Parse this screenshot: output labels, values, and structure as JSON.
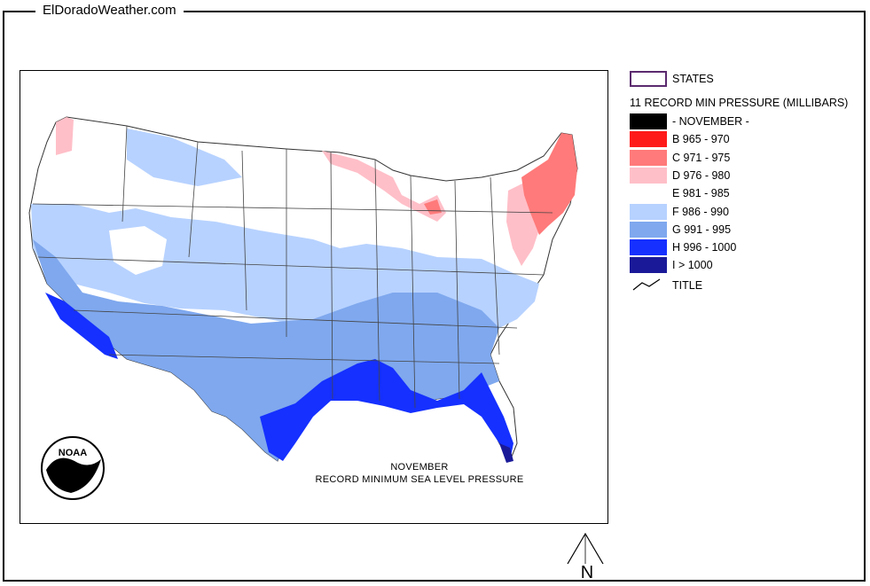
{
  "site": {
    "title": "ElDoradoWeather.com"
  },
  "map": {
    "caption_line1": "NOVEMBER",
    "caption_line2": "RECORD MINIMUM SEA LEVEL PRESSURE",
    "logo_text": "NOAA",
    "north_label": "N"
  },
  "legend": {
    "states_label": "STATES",
    "states_outline_color": "#5b2a6e",
    "layer_title": "11 RECORD MIN PRESSURE (MILLIBARS)",
    "title_label": "TITLE",
    "classes": [
      {
        "label": "- NOVEMBER -",
        "color": "#000000"
      },
      {
        "label": "B 965 - 970",
        "color": "#ff1a1a"
      },
      {
        "label": "C 971 - 975",
        "color": "#ff7a7a"
      },
      {
        "label": "D 976 - 980",
        "color": "#ffbfc8"
      },
      {
        "label": "E 981 - 985",
        "color": "#ffffff"
      },
      {
        "label": "F 986 - 990",
        "color": "#b7d2ff"
      },
      {
        "label": "G 991 - 995",
        "color": "#7fa8ee"
      },
      {
        "label": "H 996 - 1000",
        "color": "#1530ff"
      },
      {
        "label": "I > 1000",
        "color": "#1a1a99"
      }
    ]
  }
}
